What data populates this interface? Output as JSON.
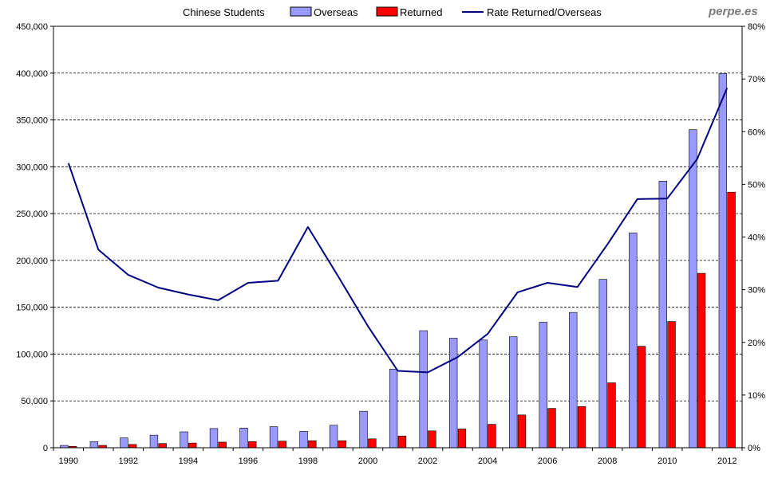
{
  "chart_data": {
    "type": "bar",
    "title": "Chinese Students",
    "brand": "perpe.es",
    "x": [
      1990,
      1991,
      1992,
      1993,
      1994,
      1995,
      1996,
      1997,
      1998,
      1999,
      2000,
      2001,
      2002,
      2003,
      2004,
      2005,
      2006,
      2007,
      2008,
      2009,
      2010,
      2011,
      2012
    ],
    "xtick_labels": [
      "1990",
      "1992",
      "1994",
      "1996",
      "1998",
      "2000",
      "2002",
      "2004",
      "2006",
      "2008",
      "2010",
      "2012"
    ],
    "xticks": [
      1990,
      1992,
      1994,
      1996,
      1998,
      2000,
      2002,
      2004,
      2006,
      2008,
      2010,
      2012
    ],
    "ylim": [
      0,
      450000
    ],
    "yticks": [
      0,
      50000,
      100000,
      150000,
      200000,
      250000,
      300000,
      350000,
      400000,
      450000
    ],
    "ytick_labels": [
      "0",
      "50,000",
      "100,000",
      "150,000",
      "200,000",
      "250,000",
      "300,000",
      "350,000",
      "400,000",
      "450,000"
    ],
    "y2lim": [
      0,
      80
    ],
    "y2ticks": [
      0,
      10,
      20,
      30,
      40,
      50,
      60,
      70,
      80
    ],
    "y2tick_labels": [
      "0%",
      "10%",
      "20%",
      "30%",
      "40%",
      "50%",
      "60%",
      "70%",
      "80%"
    ],
    "grid": "horizontal dashed",
    "legend_position": "top",
    "series": [
      {
        "name": "Overseas",
        "type": "bar",
        "axis": "left",
        "color": "#9999ff",
        "values": [
          2500,
          6500,
          10500,
          13500,
          17000,
          20500,
          21000,
          22500,
          17500,
          24000,
          39000,
          84000,
          125000,
          117000,
          115000,
          118500,
          134000,
          144500,
          179800,
          229300,
          284700,
          339700,
          399600
        ]
      },
      {
        "name": "Returned",
        "type": "bar",
        "axis": "left",
        "color": "#ff0000",
        "values": [
          1500,
          2500,
          3500,
          4500,
          5000,
          6000,
          6500,
          7000,
          7500,
          7500,
          9500,
          12500,
          18000,
          20000,
          25000,
          35000,
          42000,
          44000,
          69300,
          108300,
          134800,
          186200,
          272900
        ]
      },
      {
        "name": "Rate Returned/Overseas",
        "type": "line",
        "axis": "right",
        "color": "#000080",
        "values": [
          54.0,
          37.6,
          32.8,
          30.4,
          29.1,
          28.0,
          31.3,
          31.7,
          41.9,
          32.6,
          23.1,
          14.6,
          14.3,
          17.2,
          21.6,
          29.5,
          31.3,
          30.5,
          38.6,
          47.2,
          47.3,
          54.8,
          68.3
        ]
      }
    ]
  }
}
